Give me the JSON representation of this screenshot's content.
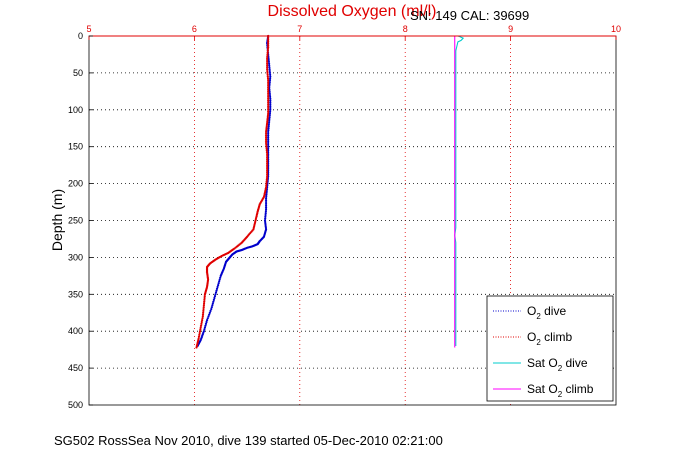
{
  "chart_data": {
    "type": "line",
    "title": "Dissolved Oxygen (ml/l)",
    "serial_text": "SN: 149  CAL: 39699",
    "footer": "SG502 RossSea Nov 2010, dive 139 started 05-Dec-2010 02:21:00",
    "ylabel": "Depth (m)",
    "xlim": [
      5,
      10
    ],
    "ylim": [
      0,
      500
    ],
    "y_reversed": true,
    "x_axis_position": "top",
    "x_ticks": [
      "5",
      "6",
      "7",
      "8",
      "9",
      "10"
    ],
    "y_ticks": [
      "0",
      "50",
      "100",
      "150",
      "200",
      "250",
      "300",
      "350",
      "400",
      "450",
      "500"
    ],
    "grid": true,
    "legend_position": "bottom-right",
    "legend": [
      {
        "prefix": "O",
        "sub": "2",
        "suffix": " dive",
        "color": "#0000cc",
        "style": "dots"
      },
      {
        "prefix": "O",
        "sub": "2",
        "suffix": " climb",
        "color": "#e00000",
        "style": "dots"
      },
      {
        "prefix": "Sat O",
        "sub": "2",
        "suffix": " dive",
        "color": "#00cccc",
        "style": "line"
      },
      {
        "prefix": "Sat O",
        "sub": "2",
        "suffix": " climb",
        "color": "#ff00ff",
        "style": "line"
      }
    ],
    "series": [
      {
        "name": "O2 dive",
        "color": "#0000cc",
        "style": "dots",
        "points": [
          [
            6.7,
            0
          ],
          [
            6.69,
            10
          ],
          [
            6.7,
            25
          ],
          [
            6.71,
            40
          ],
          [
            6.72,
            55
          ],
          [
            6.71,
            70
          ],
          [
            6.72,
            85
          ],
          [
            6.72,
            100
          ],
          [
            6.71,
            115
          ],
          [
            6.7,
            130
          ],
          [
            6.7,
            145
          ],
          [
            6.7,
            160
          ],
          [
            6.7,
            175
          ],
          [
            6.7,
            190
          ],
          [
            6.69,
            205
          ],
          [
            6.68,
            220
          ],
          [
            6.68,
            235
          ],
          [
            6.67,
            250
          ],
          [
            6.68,
            262
          ],
          [
            6.66,
            272
          ],
          [
            6.62,
            278
          ],
          [
            6.6,
            282
          ],
          [
            6.55,
            285
          ],
          [
            6.5,
            287
          ],
          [
            6.45,
            290
          ],
          [
            6.4,
            292
          ],
          [
            6.36,
            296
          ],
          [
            6.33,
            301
          ],
          [
            6.3,
            306
          ],
          [
            6.28,
            315
          ],
          [
            6.25,
            325
          ],
          [
            6.22,
            340
          ],
          [
            6.19,
            355
          ],
          [
            6.16,
            370
          ],
          [
            6.12,
            385
          ],
          [
            6.09,
            400
          ],
          [
            6.06,
            412
          ],
          [
            6.03,
            420
          ]
        ]
      },
      {
        "name": "O2 climb",
        "color": "#e00000",
        "style": "dots",
        "points": [
          [
            6.7,
            0
          ],
          [
            6.7,
            15
          ],
          [
            6.69,
            30
          ],
          [
            6.69,
            45
          ],
          [
            6.7,
            60
          ],
          [
            6.7,
            75
          ],
          [
            6.7,
            90
          ],
          [
            6.7,
            105
          ],
          [
            6.69,
            118
          ],
          [
            6.68,
            130
          ],
          [
            6.68,
            145
          ],
          [
            6.69,
            160
          ],
          [
            6.69,
            175
          ],
          [
            6.69,
            190
          ],
          [
            6.68,
            205
          ],
          [
            6.66,
            218
          ],
          [
            6.62,
            228
          ],
          [
            6.6,
            238
          ],
          [
            6.58,
            250
          ],
          [
            6.56,
            262
          ],
          [
            6.5,
            272
          ],
          [
            6.45,
            280
          ],
          [
            6.38,
            288
          ],
          [
            6.32,
            294
          ],
          [
            6.26,
            298
          ],
          [
            6.2,
            303
          ],
          [
            6.15,
            308
          ],
          [
            6.12,
            313
          ],
          [
            6.12,
            320
          ],
          [
            6.13,
            330
          ],
          [
            6.12,
            340
          ],
          [
            6.1,
            350
          ],
          [
            6.09,
            365
          ],
          [
            6.08,
            380
          ],
          [
            6.06,
            395
          ],
          [
            6.04,
            410
          ],
          [
            6.02,
            422
          ]
        ]
      },
      {
        "name": "Sat O2 dive",
        "color": "#00cccc",
        "style": "line",
        "points": [
          [
            8.5,
            0
          ],
          [
            8.52,
            1
          ],
          [
            8.55,
            3
          ],
          [
            8.53,
            6
          ],
          [
            8.5,
            8
          ],
          [
            8.48,
            20
          ],
          [
            8.48,
            100
          ],
          [
            8.48,
            200
          ],
          [
            8.48,
            260
          ],
          [
            8.47,
            270
          ],
          [
            8.48,
            280
          ],
          [
            8.48,
            330
          ],
          [
            8.48,
            420
          ]
        ]
      },
      {
        "name": "Sat O2 climb",
        "color": "#ff00ff",
        "style": "line",
        "points": [
          [
            8.47,
            0
          ],
          [
            8.47,
            100
          ],
          [
            8.47,
            200
          ],
          [
            8.47,
            300
          ],
          [
            8.47,
            400
          ],
          [
            8.47,
            422
          ]
        ]
      }
    ]
  }
}
